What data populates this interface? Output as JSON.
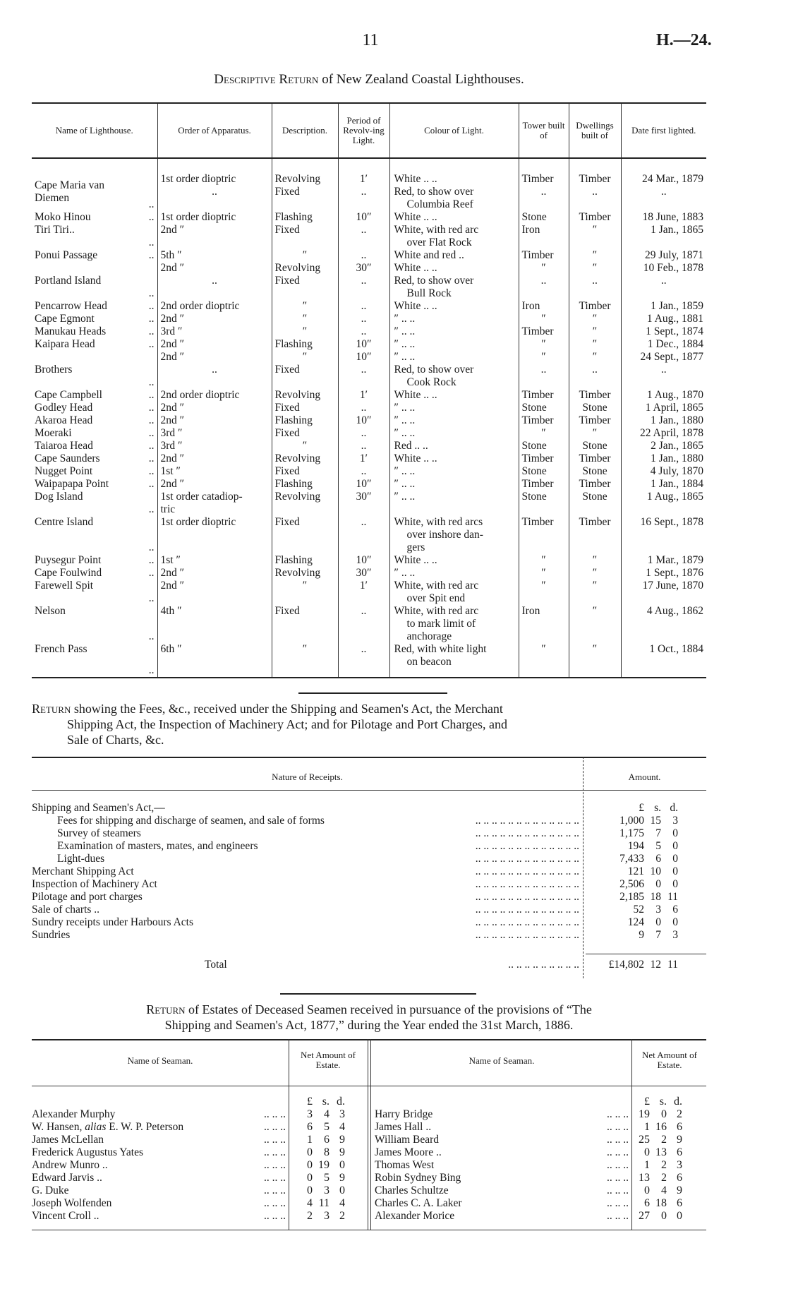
{
  "page": {
    "number": "11",
    "code": "H.—24."
  },
  "lighthouses": {
    "title_caps": "Descriptive Return",
    "title_rest": " of New Zealand Coastal Lighthouses.",
    "headers": [
      "Name of Lighthouse.",
      "Order of Apparatus.",
      "Description.",
      "Period of Revolv-ing Light.",
      "Colour of Light.",
      "Tower built of",
      "Dwellings built of",
      "Date first lighted."
    ],
    "rows": [
      {
        "name": "Cape Maria van\nDiemen",
        "entries": [
          [
            "1st order dioptric",
            "Revolving",
            "1′",
            "White .. ..",
            "Timber",
            "Timber",
            "24 Mar., 1879"
          ],
          [
            "..",
            "Fixed",
            "..",
            "Red, to show over\nColumbia Reef",
            "..",
            "..",
            ".."
          ]
        ]
      },
      {
        "name": "Moko Hinou",
        "entries": [
          [
            "1st order dioptric",
            "Flashing",
            "10″",
            "White .. ..",
            "Stone",
            "Timber",
            "18 June, 1883"
          ]
        ]
      },
      {
        "name": "Tiri Tiri..",
        "entries": [
          [
            "2nd ″",
            "Fixed",
            "..",
            "White, with red arc\nover Flat Rock",
            "Iron",
            "″",
            "1 Jan., 1865"
          ]
        ]
      },
      {
        "name": "Ponui Passage",
        "entries": [
          [
            "5th ″",
            "″",
            "..",
            "White and red ..",
            "Timber",
            "″",
            "29 July, 1871"
          ]
        ]
      },
      {
        "name": "Portland Island",
        "entries": [
          [
            "2nd ″",
            "Revolving",
            "30″",
            "White .. ..",
            "″",
            "″",
            "10 Feb., 1878"
          ],
          [
            "..",
            "Fixed",
            "..",
            "Red, to show over\nBull Rock",
            "..",
            "..",
            ".."
          ]
        ]
      },
      {
        "name": "Pencarrow Head",
        "entries": [
          [
            "2nd order dioptric",
            "″",
            "..",
            "White .. ..",
            "Iron",
            "Timber",
            "1 Jan., 1859"
          ]
        ]
      },
      {
        "name": "Cape Egmont",
        "entries": [
          [
            "2nd ″",
            "″",
            "..",
            "″ .. ..",
            "″",
            "″",
            "1 Aug., 1881"
          ]
        ]
      },
      {
        "name": "Manukau Heads",
        "entries": [
          [
            "3rd ″",
            "″",
            "..",
            "″ .. ..",
            "Timber",
            "″",
            "1 Sept., 1874"
          ]
        ]
      },
      {
        "name": "Kaipara Head",
        "entries": [
          [
            "2nd ″",
            "Flashing",
            "10″",
            "″ .. ..",
            "″",
            "″",
            "1 Dec., 1884"
          ]
        ]
      },
      {
        "name": "Brothers ..",
        "entries": [
          [
            "2nd ″",
            "″",
            "10″",
            "″ .. ..",
            "″",
            "″",
            "24 Sept., 1877"
          ],
          [
            "..",
            "Fixed",
            "..",
            "Red, to show over\nCook Rock",
            "..",
            "..",
            ".."
          ]
        ]
      },
      {
        "name": "Cape Campbell",
        "entries": [
          [
            "2nd order dioptric",
            "Revolving",
            "1′",
            "White .. ..",
            "Timber",
            "Timber",
            "1 Aug., 1870"
          ]
        ]
      },
      {
        "name": "Godley Head",
        "entries": [
          [
            "2nd ″",
            "Fixed",
            "..",
            "″ .. ..",
            "Stone",
            "Stone",
            "1 April, 1865"
          ]
        ]
      },
      {
        "name": "Akaroa Head",
        "entries": [
          [
            "2nd ″",
            "Flashing",
            "10″",
            "″ .. ..",
            "Timber",
            "Timber",
            "1 Jan., 1880"
          ]
        ]
      },
      {
        "name": "Moeraki ..",
        "entries": [
          [
            "3rd ″",
            "Fixed",
            "..",
            "″ .. ..",
            "″",
            "″",
            "22 April, 1878"
          ]
        ]
      },
      {
        "name": "Taiaroa Head",
        "entries": [
          [
            "3rd ″",
            "″",
            "..",
            "Red .. ..",
            "Stone",
            "Stone",
            "2 Jan., 1865"
          ]
        ]
      },
      {
        "name": "Cape Saunders",
        "entries": [
          [
            "2nd ″",
            "Revolving",
            "1′",
            "White .. ..",
            "Timber",
            "Timber",
            "1 Jan., 1880"
          ]
        ]
      },
      {
        "name": "Nugget Point",
        "entries": [
          [
            "1st ″",
            "Fixed",
            "..",
            "″ .. ..",
            "Stone",
            "Stone",
            "4 July, 1870"
          ]
        ]
      },
      {
        "name": "Waipapapa Point",
        "entries": [
          [
            "2nd ″",
            "Flashing",
            "10″",
            "″ .. ..",
            "Timber",
            "Timber",
            "1 Jan., 1884"
          ]
        ]
      },
      {
        "name": "Dog Island",
        "entries": [
          [
            "1st order catadiop-\n  tric",
            "Revolving",
            "30″",
            "″ .. ..",
            "Stone",
            "Stone",
            "1 Aug., 1865"
          ]
        ]
      },
      {
        "name": "Centre Island",
        "entries": [
          [
            "1st order dioptric",
            "Fixed",
            "..",
            "White, with red arcs\nover inshore dan-\ngers",
            "Timber",
            "Timber",
            "16 Sept., 1878"
          ]
        ]
      },
      {
        "name": "Puysegur Point",
        "entries": [
          [
            "1st ″",
            "Flashing",
            "10″",
            "White .. ..",
            "″",
            "″",
            "1 Mar., 1879"
          ]
        ]
      },
      {
        "name": "Cape Foulwind",
        "entries": [
          [
            "2nd ″",
            "Revolving",
            "30″",
            "″ .. ..",
            "″",
            "″",
            "1 Sept., 1876"
          ]
        ]
      },
      {
        "name": "Farewell Spit",
        "entries": [
          [
            "2nd ″",
            "″",
            "1′",
            "White, with red arc\nover Spit end",
            "″",
            "″",
            "17 June, 1870"
          ]
        ]
      },
      {
        "name": "Nelson ..",
        "entries": [
          [
            "4th ″",
            "Fixed",
            "..",
            "White, with red arc\nto mark limit of\nanchorage",
            "Iron",
            "″",
            "4 Aug., 1862"
          ]
        ]
      },
      {
        "name": "French Pass",
        "entries": [
          [
            "6th ″",
            "″",
            "..",
            "Red, with white light\non beacon",
            "″",
            "″",
            "1 Oct., 1884"
          ]
        ]
      }
    ]
  },
  "fees": {
    "title_caps": "Return",
    "title_line1": " showing the Fees, &c., received under the Shipping and Seamen's Act, the Merchant",
    "title_line2": "Shipping Act, the Inspection of Machinery Act; and for Pilotage and Port Charges, and",
    "title_line3": "Sale of Charts, &c.",
    "headers": {
      "nature": "Nature of Receipts.",
      "amount": "Amount."
    },
    "currency_units": [
      "£",
      "s.",
      "d."
    ],
    "section": "Shipping and Seamen's Act,—",
    "rows": [
      {
        "label": "Fees for shipping and discharge of seamen, and sale of forms",
        "indent": true,
        "amount": [
          "1,000",
          "15",
          "3"
        ]
      },
      {
        "label": "Survey of steamers",
        "indent": true,
        "amount": [
          "1,175",
          "7",
          "0"
        ]
      },
      {
        "label": "Examination of masters, mates, and engineers",
        "indent": true,
        "amount": [
          "194",
          "5",
          "0"
        ]
      },
      {
        "label": "Light-dues",
        "indent": true,
        "amount": [
          "7,433",
          "6",
          "0"
        ]
      },
      {
        "label": "Merchant Shipping Act",
        "indent": false,
        "amount": [
          "121",
          "10",
          "0"
        ]
      },
      {
        "label": "Inspection of Machinery Act",
        "indent": false,
        "amount": [
          "2,506",
          "0",
          "0"
        ]
      },
      {
        "label": "Pilotage and port charges",
        "indent": false,
        "amount": [
          "2,185",
          "18",
          "11"
        ]
      },
      {
        "label": "Sale of charts ..",
        "indent": false,
        "amount": [
          "52",
          "3",
          "6"
        ]
      },
      {
        "label": "Sundry receipts under Harbours Acts",
        "indent": false,
        "amount": [
          "124",
          "0",
          "0"
        ]
      },
      {
        "label": "Sundries",
        "indent": false,
        "amount": [
          "9",
          "7",
          "3"
        ]
      }
    ],
    "total_label": "Total",
    "total_amount": [
      "£14,802",
      "12",
      "11"
    ]
  },
  "seamen": {
    "title_caps": "Return",
    "title_line1": " of Estates of Deceased Seamen received in pursuance of the provisions of “The",
    "title_line2": "Shipping and Seamen's Act, 1877,” during the Year ended the 31st March, 1886.",
    "headers": {
      "name": "Name of Seaman.",
      "amount": "Net Amount of Estate."
    },
    "currency_units": [
      "£",
      "s.",
      "d."
    ],
    "left": [
      {
        "name": "Alexander Murphy",
        "amount": [
          "3",
          "4",
          "3"
        ]
      },
      {
        "name": "W. Hansen, alias E. W. P. Peterson",
        "amount": [
          "6",
          "5",
          "4"
        ]
      },
      {
        "name": "James McLellan",
        "amount": [
          "1",
          "6",
          "9"
        ]
      },
      {
        "name": "Frederick Augustus Yates",
        "amount": [
          "0",
          "8",
          "9"
        ]
      },
      {
        "name": "Andrew Munro ..",
        "amount": [
          "0",
          "19",
          "0"
        ]
      },
      {
        "name": "Edward Jarvis ..",
        "amount": [
          "0",
          "5",
          "9"
        ]
      },
      {
        "name": "G. Duke",
        "amount": [
          "0",
          "3",
          "0"
        ]
      },
      {
        "name": "Joseph Wolfenden",
        "amount": [
          "4",
          "11",
          "4"
        ]
      },
      {
        "name": "Vincent Croll ..",
        "amount": [
          "2",
          "3",
          "2"
        ]
      }
    ],
    "right": [
      {
        "name": "Harry Bridge",
        "amount": [
          "19",
          "0",
          "2"
        ]
      },
      {
        "name": "James Hall ..",
        "amount": [
          "1",
          "16",
          "6"
        ]
      },
      {
        "name": "William Beard",
        "amount": [
          "25",
          "2",
          "9"
        ]
      },
      {
        "name": "James Moore ..",
        "amount": [
          "0",
          "13",
          "6"
        ]
      },
      {
        "name": "Thomas West",
        "amount": [
          "1",
          "2",
          "3"
        ]
      },
      {
        "name": "Robin Sydney Bing",
        "amount": [
          "13",
          "2",
          "6"
        ]
      },
      {
        "name": "Charles Schultze",
        "amount": [
          "0",
          "4",
          "9"
        ]
      },
      {
        "name": "Charles C. A. Laker",
        "amount": [
          "6",
          "18",
          "6"
        ]
      },
      {
        "name": "Alexander Morice",
        "amount": [
          "27",
          "0",
          "0"
        ]
      }
    ]
  }
}
